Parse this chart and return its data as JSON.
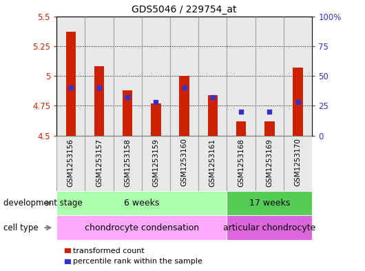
{
  "title": "GDS5046 / 229754_at",
  "samples": [
    "GSM1253156",
    "GSM1253157",
    "GSM1253158",
    "GSM1253159",
    "GSM1253160",
    "GSM1253161",
    "GSM1253168",
    "GSM1253169",
    "GSM1253170"
  ],
  "transformed_counts": [
    5.37,
    5.08,
    4.88,
    4.77,
    5.0,
    4.84,
    4.62,
    4.62,
    5.07
  ],
  "percentile_ranks": [
    40,
    40,
    32,
    28,
    40,
    32,
    20,
    20,
    28
  ],
  "ymin": 4.5,
  "ymax": 5.5,
  "yticks": [
    4.5,
    4.75,
    5.0,
    5.25,
    5.5
  ],
  "ytick_labels": [
    "4.5",
    "4.75",
    "5",
    "5.25",
    "5.5"
  ],
  "y2min": 0,
  "y2max": 100,
  "y2ticks": [
    0,
    25,
    50,
    75,
    100
  ],
  "y2tick_labels": [
    "0",
    "25",
    "50",
    "75",
    "100%"
  ],
  "grid_lines": [
    4.75,
    5.0,
    5.25
  ],
  "bar_color": "#cc2200",
  "dot_color": "#3333cc",
  "bar_baseline": 4.5,
  "bar_width": 0.35,
  "development_stage_groups": [
    {
      "label": "6 weeks",
      "start": 0,
      "end": 6,
      "color": "#aaffaa"
    },
    {
      "label": "17 weeks",
      "start": 6,
      "end": 9,
      "color": "#55cc55"
    }
  ],
  "cell_type_groups": [
    {
      "label": "chondrocyte condensation",
      "start": 0,
      "end": 6,
      "color": "#ffaaff"
    },
    {
      "label": "articular chondrocyte",
      "start": 6,
      "end": 9,
      "color": "#dd66dd"
    }
  ],
  "dev_stage_label": "development stage",
  "cell_type_label": "cell type",
  "legend_bar_label": "transformed count",
  "legend_dot_label": "percentile rank within the sample",
  "tick_color_left": "#cc2200",
  "tick_color_right": "#3333cc",
  "col_bg_color": "#d4d4d4",
  "separator_color": "#888888"
}
